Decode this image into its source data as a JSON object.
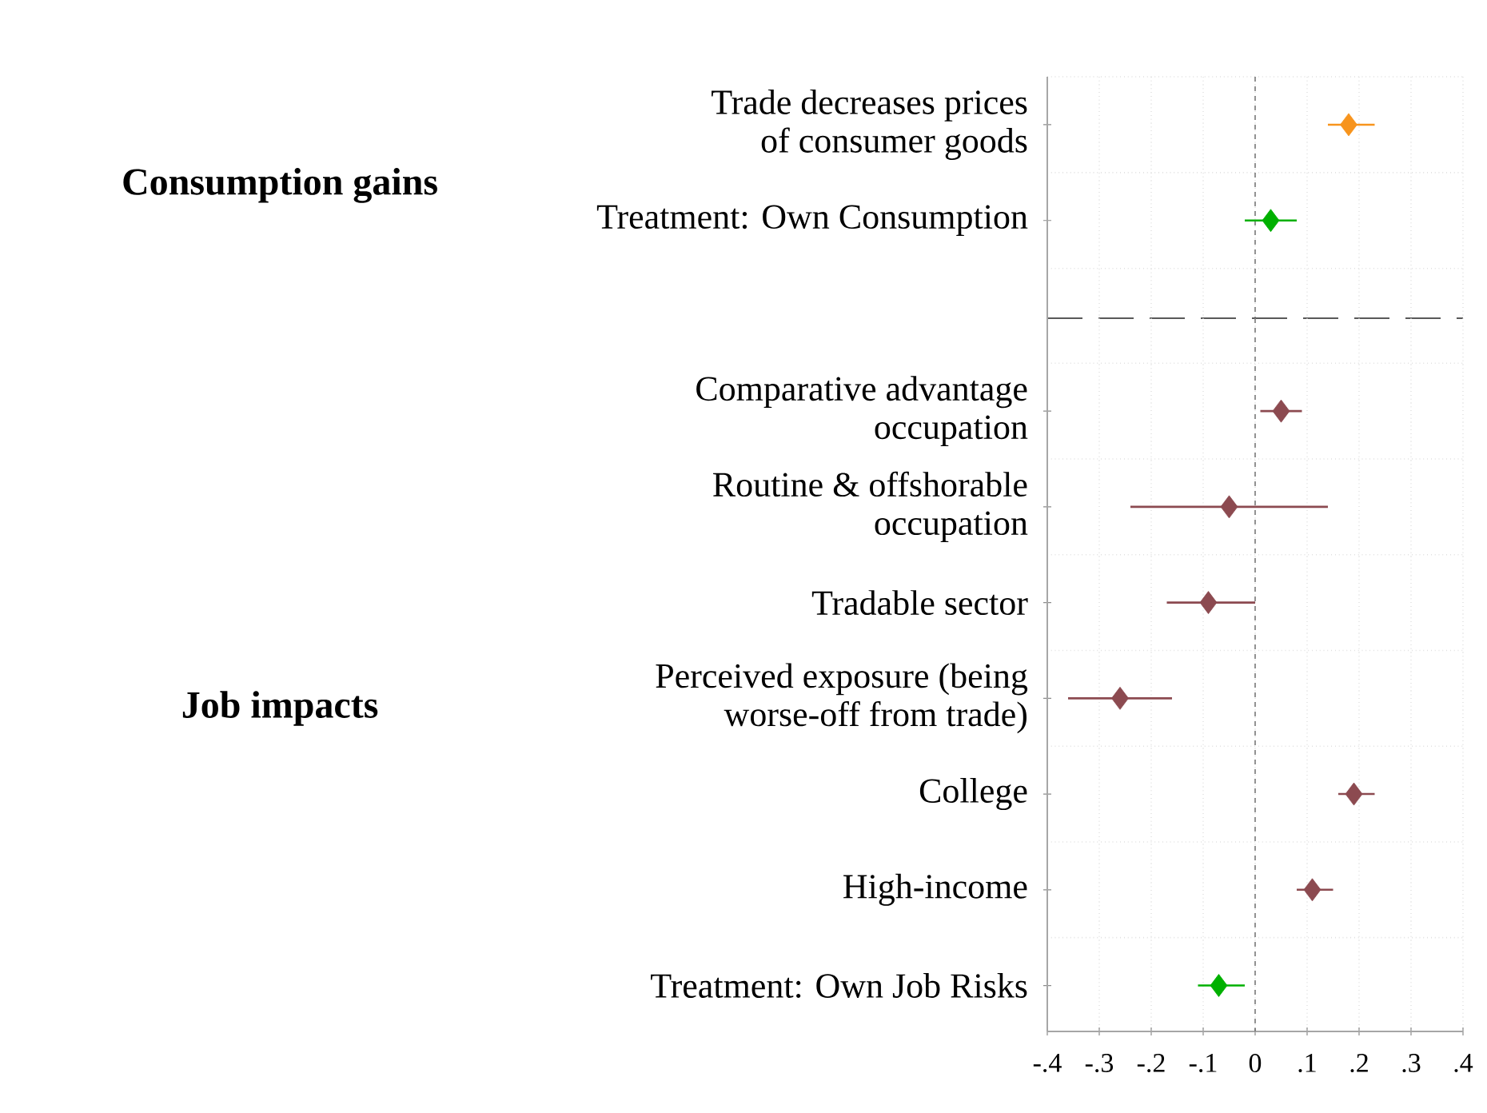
{
  "chart_data": [
    {
      "type": "scatter",
      "orientation": "horizontal",
      "ylabel": "Consumption gains",
      "categories": [
        "Trade decreases prices of consumer goods",
        "Treatment: Own Consumption"
      ],
      "values": [
        0.18,
        0.03
      ],
      "errors": [
        [
          0.14,
          0.23
        ],
        [
          -0.02,
          0.08
        ]
      ],
      "colors": [
        "#f7941d",
        "#00b000"
      ],
      "xlim": [
        -0.4,
        0.4
      ],
      "xticks": [
        {
          "value": -0.4,
          "label": null
        },
        {
          "value": -0.3,
          "label": null
        },
        {
          "value": -0.2,
          "label": null
        },
        {
          "value": -0.1,
          "label": null
        },
        {
          "value": 0,
          "label": null
        },
        {
          "value": 0.1,
          "label": null
        },
        {
          "value": 0.2,
          "label": null
        },
        {
          "value": 0.3,
          "label": null
        },
        {
          "value": 0.4,
          "label": null
        }
      ],
      "tick_labels": "y",
      "marker": "diamond",
      "grid": true,
      "ref_lines": [
        {
          "axis": "x",
          "value": 0,
          "line_style": "dashed",
          "color": "#666666"
        }
      ]
    },
    {
      "type": "scatter",
      "orientation": "horizontal",
      "ylabel": "Job impacts",
      "categories": [
        "Comparative advantage occupation",
        "Routine & offshorable occupation",
        "Tradable sector",
        "Perceived exposure (being worse-off from trade)",
        "College",
        "High-income",
        "Treatment: Own Job Risks"
      ],
      "values": [
        0.05,
        -0.05,
        -0.09,
        -0.26,
        0.19,
        0.11,
        -0.07
      ],
      "errors": [
        [
          0.01,
          0.09
        ],
        [
          -0.24,
          0.14
        ],
        [
          -0.17,
          0.0
        ],
        [
          -0.36,
          -0.16
        ],
        [
          0.16,
          0.23
        ],
        [
          0.08,
          0.15
        ],
        [
          -0.11,
          -0.02
        ]
      ],
      "colors": [
        "#8c4a50",
        "#8c4a50",
        "#8c4a50",
        "#8c4a50",
        "#8c4a50",
        "#8c4a50",
        "#00b000"
      ],
      "xlim": [
        -0.4,
        0.4
      ],
      "xticks": [
        {
          "value": -0.4,
          "label": "-.4"
        },
        {
          "value": -0.3,
          "label": "-.3"
        },
        {
          "value": -0.2,
          "label": "-.2"
        },
        {
          "value": -0.1,
          "label": "-.1"
        },
        0,
        {
          "value": 0.1,
          "label": ".1"
        },
        {
          "value": 0.2,
          "label": ".2"
        },
        {
          "value": 0.3,
          "label": ".3"
        },
        {
          "value": 0.4,
          "label": ".4"
        }
      ],
      "marker": "diamond",
      "grid": true,
      "ref_lines": [
        {
          "axis": "x",
          "value": 0,
          "line_style": "dashed",
          "color": "#666666"
        }
      ]
    }
  ]
}
